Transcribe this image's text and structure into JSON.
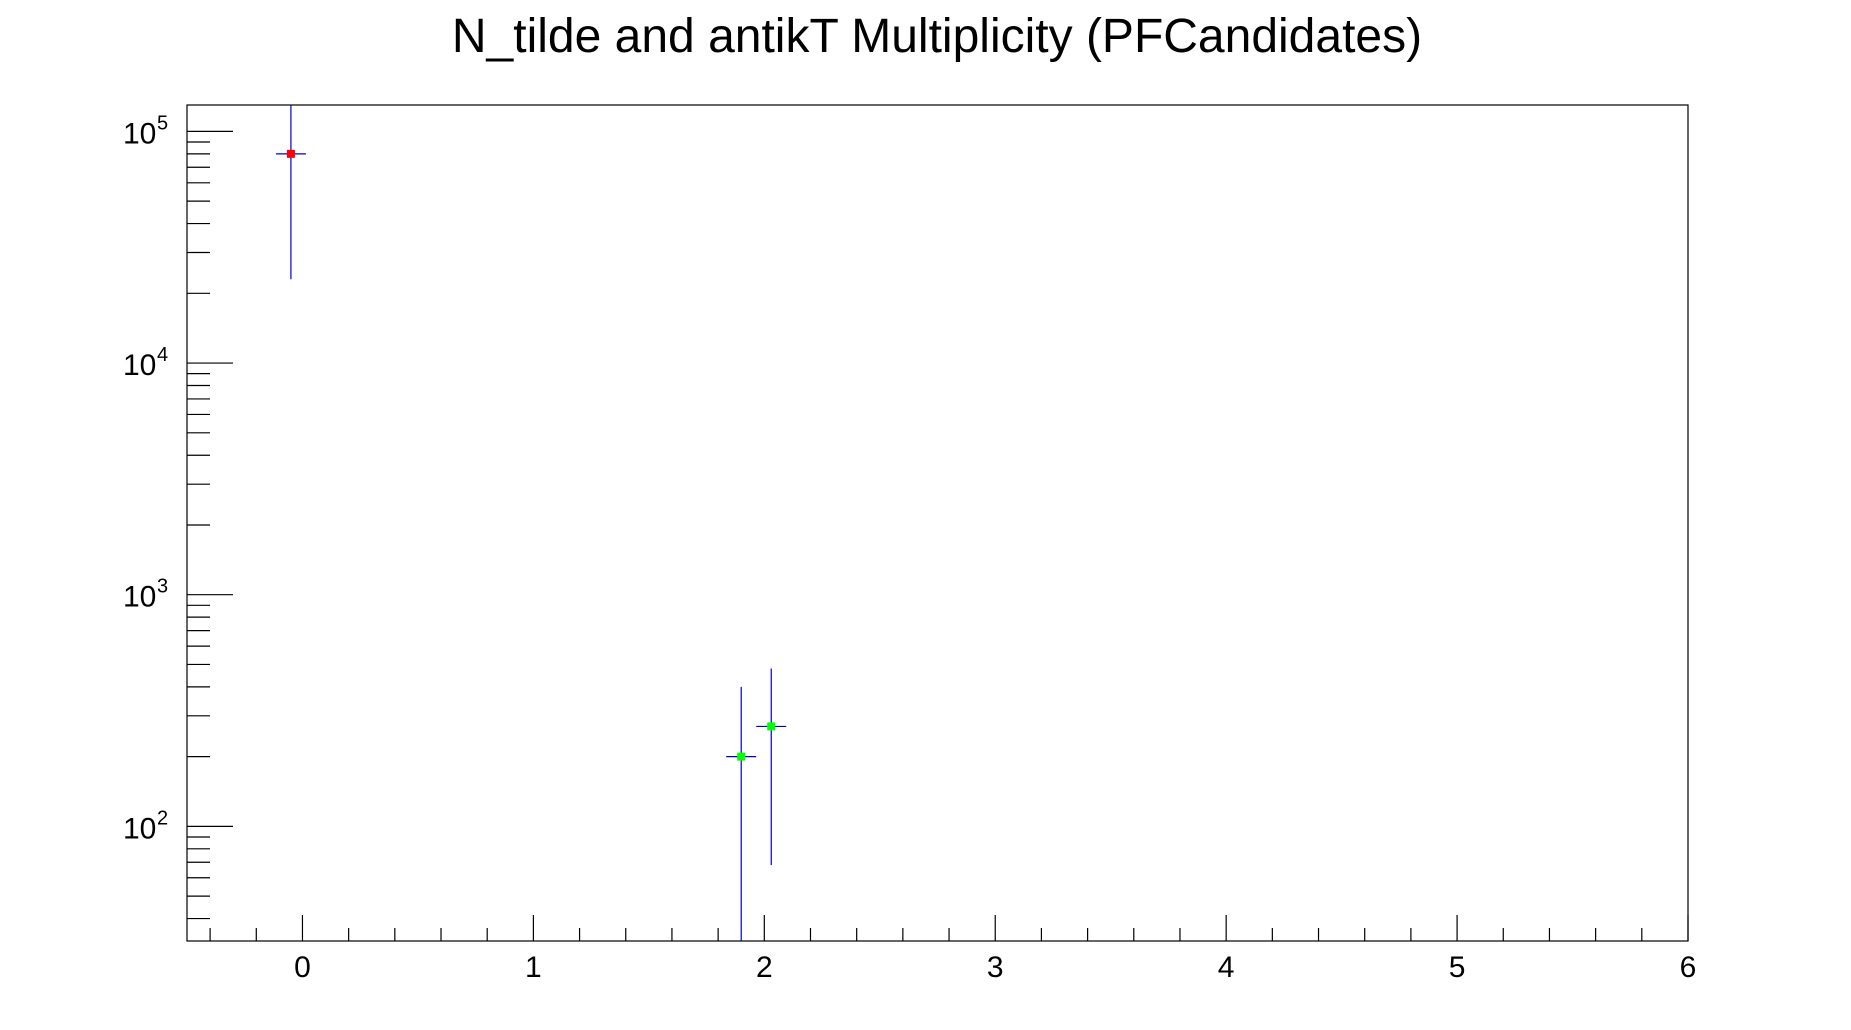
{
  "chart_data": {
    "type": "scatter",
    "title": "N_tilde and antikT Multiplicity (PFCandidates)",
    "xlabel": "",
    "ylabel": "",
    "xlim": [
      -0.5,
      6
    ],
    "ylim": [
      32,
      130000
    ],
    "yscale": "log",
    "grid": false,
    "x_ticks": [
      "0",
      "1",
      "2",
      "3",
      "4",
      "5",
      "6"
    ],
    "y_ticks": [
      {
        "base": "10",
        "exp": "2",
        "value": 100
      },
      {
        "base": "10",
        "exp": "3",
        "value": 1000
      },
      {
        "base": "10",
        "exp": "4",
        "value": 10000
      },
      {
        "base": "10",
        "exp": "5",
        "value": 100000
      }
    ],
    "series": [
      {
        "color": "#ff0000",
        "errorbar_color": "#0000cc",
        "points": [
          {
            "x": -0.05,
            "y": 80000,
            "xerr": 0.065,
            "ylow": 23000,
            "yhigh": 130000
          }
        ]
      },
      {
        "color": "#00ff00",
        "errorbar_color": "#0000cc",
        "points": [
          {
            "x": 1.9,
            "y": 200,
            "xerr": 0.065,
            "ylow": 32,
            "yhigh": 400
          },
          {
            "x": 2.03,
            "y": 270,
            "xerr": 0.065,
            "ylow": 68,
            "yhigh": 480
          }
        ]
      }
    ]
  }
}
